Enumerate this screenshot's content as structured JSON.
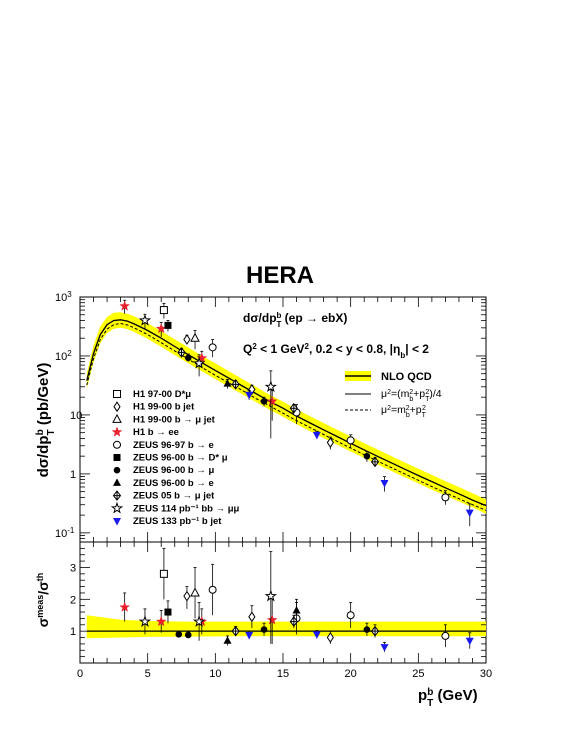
{
  "title": "HERA",
  "chart_data": [
    {
      "type": "scatter",
      "xlabel_main": "p",
      "xlabel_sup": "b",
      "xlabel_sub": "T",
      "xlabel_unit": " (GeV)",
      "ylabel": "dσ/dp_T^b (pb/GeV)",
      "x_range": [
        0,
        30
      ],
      "y_range": [
        0.07,
        1000
      ],
      "y_scale": "log",
      "x_ticks": [
        "0",
        "5",
        "10",
        "15",
        "20",
        "25",
        "30"
      ],
      "y_ticks": [
        {
          "value": 0.1,
          "base": "10",
          "exp": "-1"
        },
        {
          "value": 1,
          "base": "1",
          "exp": ""
        },
        {
          "value": 10,
          "base": "10",
          "exp": ""
        },
        {
          "value": 100,
          "base": "10",
          "exp": "2"
        },
        {
          "value": 1000,
          "base": "10",
          "exp": "3"
        }
      ],
      "annotations": {
        "process": "dσ/dp_T^b (ep → ebX)",
        "cuts": "Q^2 < 1 GeV^2, 0.2 < y < 0.8, |η_b| < 2"
      },
      "theory": {
        "band_label": "NLO QCD",
        "solid_label": "μ^2=(m_b^2+p_T^2)/4",
        "dashed_label": "μ^2=m_b^2+p_T^2",
        "band_color": "#ffff00",
        "x": [
          0.5,
          1,
          1.5,
          2,
          2.5,
          3,
          3.5,
          4,
          5,
          6,
          7,
          8,
          9,
          10,
          11,
          12,
          13,
          14,
          15,
          16,
          17,
          18,
          19,
          20,
          21,
          22,
          23,
          24,
          25,
          26,
          27,
          28,
          29,
          30
        ],
        "solid": [
          38,
          110,
          230,
          340,
          400,
          410,
          390,
          350,
          270,
          200,
          145,
          105,
          77,
          57,
          42,
          31,
          23,
          17,
          13,
          9.6,
          7.3,
          5.6,
          4.3,
          3.3,
          2.55,
          1.98,
          1.54,
          1.2,
          0.94,
          0.74,
          0.58,
          0.46,
          0.36,
          0.29
        ],
        "dashed": [
          32,
          90,
          190,
          285,
          340,
          355,
          335,
          300,
          230,
          168,
          122,
          88,
          64,
          47,
          35,
          26,
          19,
          14.3,
          10.7,
          8.0,
          6.1,
          4.65,
          3.57,
          2.74,
          2.12,
          1.64,
          1.28,
          1.0,
          0.78,
          0.61,
          0.48,
          0.38,
          0.3,
          0.24
        ],
        "band_high": [
          50,
          150,
          320,
          460,
          540,
          550,
          520,
          470,
          360,
          265,
          192,
          139,
          101,
          75,
          55,
          40.5,
          30,
          22,
          16.8,
          12.5,
          9.5,
          7.3,
          5.6,
          4.3,
          3.32,
          2.58,
          2.0,
          1.56,
          1.22,
          0.96,
          0.75,
          0.6,
          0.47,
          0.37
        ],
        "band_low": [
          28,
          78,
          165,
          245,
          290,
          300,
          285,
          255,
          195,
          143,
          104,
          75,
          55,
          40.5,
          30,
          22.3,
          16.6,
          12.3,
          9.3,
          7.0,
          5.3,
          4.05,
          3.12,
          2.4,
          1.86,
          1.44,
          1.12,
          0.88,
          0.69,
          0.54,
          0.43,
          0.34,
          0.27,
          0.21
        ]
      },
      "series": [
        {
          "name": "H1 97-00 D*μ",
          "marker": "open-square",
          "color": "#000000",
          "points": [
            {
              "x": 6.2,
              "y": 600,
              "ylo": 430,
              "yhi": 780
            }
          ]
        },
        {
          "name": "H1 99-00 b jet",
          "marker": "open-diamond",
          "color": "#000000",
          "points": [
            {
              "x": 7.9,
              "y": 190,
              "ylo": 160,
              "yhi": 225
            },
            {
              "x": 12.7,
              "y": 27,
              "ylo": 22,
              "yhi": 32
            },
            {
              "x": 18.5,
              "y": 3.4,
              "ylo": 2.6,
              "yhi": 4.2
            }
          ]
        },
        {
          "name": "H1 99-00 b → μ jet",
          "marker": "open-triangle",
          "color": "#000000",
          "points": [
            {
              "x": 8.5,
              "y": 200,
              "ylo": 130,
              "yhi": 270
            }
          ]
        },
        {
          "name": "H1 b → ee",
          "marker": "star",
          "color": "#e8212d",
          "points": [
            {
              "x": 3.3,
              "y": 700,
              "ylo": 520,
              "yhi": 880
            },
            {
              "x": 6.0,
              "y": 290,
              "ylo": 210,
              "yhi": 370
            },
            {
              "x": 9.0,
              "y": 92,
              "ylo": 65,
              "yhi": 120
            },
            {
              "x": 14.2,
              "y": 17,
              "ylo": 8,
              "yhi": 26
            }
          ]
        },
        {
          "name": "ZEUS 96-97 b → e",
          "marker": "open-circle",
          "color": "#000000",
          "points": [
            {
              "x": 9.8,
              "y": 140,
              "ylo": 95,
              "yhi": 190
            },
            {
              "x": 16.0,
              "y": 11,
              "ylo": 7,
              "yhi": 15
            },
            {
              "x": 20.0,
              "y": 3.7,
              "ylo": 2.8,
              "yhi": 4.6
            },
            {
              "x": 27.0,
              "y": 0.4,
              "ylo": 0.3,
              "yhi": 0.52
            }
          ]
        },
        {
          "name": "ZEUS 96-00 b → D* μ",
          "marker": "filled-square",
          "color": "#000000",
          "points": [
            {
              "x": 6.5,
              "y": 330,
              "ylo": 260,
              "yhi": 400
            }
          ]
        },
        {
          "name": "ZEUS 96-00 b → μ",
          "marker": "filled-circle",
          "color": "#000000",
          "points": [
            {
              "x": 8.0,
              "y": 93,
              "ylo": 80,
              "yhi": 108
            },
            {
              "x": 13.6,
              "y": 17,
              "ylo": 14,
              "yhi": 20
            },
            {
              "x": 21.2,
              "y": 2.0,
              "ylo": 1.6,
              "yhi": 2.4
            }
          ]
        },
        {
          "name": "ZEUS 96-00 b → e",
          "marker": "filled-triangle",
          "color": "#000000",
          "points": [
            {
              "x": 10.9,
              "y": 34,
              "ylo": 28,
              "yhi": 40
            }
          ]
        },
        {
          "name": "ZEUS 05 b → μ jet",
          "marker": "cross-diamond",
          "color": "#000000",
          "points": [
            {
              "x": 7.5,
              "y": 115,
              "ylo": 95,
              "yhi": 135
            },
            {
              "x": 11.5,
              "y": 33,
              "ylo": 28,
              "yhi": 38
            },
            {
              "x": 15.8,
              "y": 13,
              "ylo": 11,
              "yhi": 15
            },
            {
              "x": 21.8,
              "y": 1.6,
              "ylo": 1.3,
              "yhi": 1.9
            }
          ]
        },
        {
          "name": "ZEUS 114 pb⁻¹ bb → μμ",
          "marker": "open-star",
          "color": "#000000",
          "points": [
            {
              "x": 4.8,
              "y": 400,
              "ylo": 290,
              "yhi": 510
            },
            {
              "x": 8.8,
              "y": 75,
              "ylo": 45,
              "yhi": 105
            },
            {
              "x": 14.1,
              "y": 30,
              "ylo": 4,
              "yhi": 56
            }
          ]
        },
        {
          "name": "ZEUS 133 pb⁻¹ b jet",
          "marker": "down-triangle",
          "color": "#1a1aee",
          "points": [
            {
              "x": 12.5,
              "y": 22,
              "ylo": 18,
              "yhi": 26
            },
            {
              "x": 17.5,
              "y": 4.6,
              "ylo": 3.9,
              "yhi": 5.3
            },
            {
              "x": 22.5,
              "y": 0.7,
              "ylo": 0.5,
              "yhi": 0.9
            },
            {
              "x": 28.8,
              "y": 0.22,
              "ylo": 0.13,
              "yhi": 0.31
            }
          ]
        }
      ]
    },
    {
      "type": "scatter",
      "ylabel": "σ^meas/σ^th",
      "x_range": [
        0,
        30
      ],
      "y_range": [
        0,
        3.8
      ],
      "y_ticks": [
        "1",
        "2",
        "3"
      ],
      "reference_line": 1,
      "band": {
        "x": [
          0.5,
          3,
          5,
          8,
          12,
          20,
          30
        ],
        "low": [
          0.78,
          0.8,
          0.82,
          0.83,
          0.84,
          0.84,
          0.84
        ],
        "high": [
          1.5,
          1.36,
          1.32,
          1.3,
          1.3,
          1.3,
          1.3
        ]
      },
      "series": [
        {
          "name": "H1 97-00 D*μ",
          "marker": "open-square",
          "color": "#000000",
          "points": [
            {
              "x": 6.2,
              "y": 2.8,
              "ylo": 2.0,
              "yhi": 3.6
            }
          ]
        },
        {
          "name": "H1 99-00 b jet",
          "marker": "open-diamond",
          "color": "#000000",
          "points": [
            {
              "x": 7.9,
              "y": 2.1,
              "ylo": 1.7,
              "yhi": 2.4
            },
            {
              "x": 12.7,
              "y": 1.45,
              "ylo": 1.1,
              "yhi": 1.8
            },
            {
              "x": 18.5,
              "y": 0.8,
              "ylo": 0.6,
              "yhi": 1.0
            }
          ]
        },
        {
          "name": "H1 99-00 b → μ jet",
          "marker": "open-triangle",
          "color": "#000000",
          "points": [
            {
              "x": 8.5,
              "y": 2.2,
              "ylo": 1.4,
              "yhi": 3.0
            }
          ]
        },
        {
          "name": "H1 b → ee",
          "marker": "star",
          "color": "#e8212d",
          "points": [
            {
              "x": 3.3,
              "y": 1.75,
              "ylo": 1.3,
              "yhi": 2.2
            },
            {
              "x": 6.0,
              "y": 1.3,
              "ylo": 0.95,
              "yhi": 1.65
            },
            {
              "x": 9.0,
              "y": 1.3,
              "ylo": 0.9,
              "yhi": 1.7
            },
            {
              "x": 14.2,
              "y": 1.35,
              "ylo": 0.6,
              "yhi": 2.1
            }
          ]
        },
        {
          "name": "ZEUS 96-97 b → e",
          "marker": "open-circle",
          "color": "#000000",
          "points": [
            {
              "x": 9.8,
              "y": 2.3,
              "ylo": 1.5,
              "yhi": 3.1
            },
            {
              "x": 16.0,
              "y": 1.4,
              "ylo": 0.9,
              "yhi": 1.9
            },
            {
              "x": 20.0,
              "y": 1.5,
              "ylo": 1.1,
              "yhi": 1.9
            },
            {
              "x": 27.0,
              "y": 0.85,
              "ylo": 0.5,
              "yhi": 1.2
            }
          ]
        },
        {
          "name": "ZEUS 96-00 b → D* μ",
          "marker": "filled-square",
          "color": "#000000",
          "points": [
            {
              "x": 6.5,
              "y": 1.6,
              "ylo": 1.25,
              "yhi": 1.95
            }
          ]
        },
        {
          "name": "ZEUS 96-00 b → μ",
          "marker": "filled-circle",
          "color": "#000000",
          "points": [
            {
              "x": 7.3,
              "y": 0.9,
              "ylo": 0.8,
              "yhi": 1.0
            },
            {
              "x": 8.0,
              "y": 0.88,
              "ylo": 0.78,
              "yhi": 0.98
            },
            {
              "x": 13.6,
              "y": 1.05,
              "ylo": 0.85,
              "yhi": 1.25
            },
            {
              "x": 21.2,
              "y": 1.05,
              "ylo": 0.85,
              "yhi": 1.25
            }
          ]
        },
        {
          "name": "ZEUS 96-00 b → e",
          "marker": "filled-triangle",
          "color": "#000000",
          "points": [
            {
              "x": 10.9,
              "y": 0.7,
              "ylo": 0.55,
              "yhi": 0.85
            },
            {
              "x": 16.0,
              "y": 1.65,
              "ylo": 1.3,
              "yhi": 2.0
            }
          ]
        },
        {
          "name": "ZEUS 05 b → μ jet",
          "marker": "cross-diamond",
          "color": "#000000",
          "points": [
            {
              "x": 11.5,
              "y": 1.0,
              "ylo": 0.85,
              "yhi": 1.15
            },
            {
              "x": 15.8,
              "y": 1.3,
              "ylo": 1.1,
              "yhi": 1.5
            },
            {
              "x": 21.8,
              "y": 1.0,
              "ylo": 0.8,
              "yhi": 1.2
            }
          ]
        },
        {
          "name": "ZEUS 114 pb⁻¹ bb → μμ",
          "marker": "open-star",
          "color": "#000000",
          "points": [
            {
              "x": 4.8,
              "y": 1.3,
              "ylo": 0.9,
              "yhi": 1.7
            },
            {
              "x": 8.8,
              "y": 1.3,
              "ylo": 0.7,
              "yhi": 1.9
            },
            {
              "x": 14.1,
              "y": 2.1,
              "ylo": 0.6,
              "yhi": 3.5
            }
          ]
        },
        {
          "name": "ZEUS 133 pb⁻¹ b jet",
          "marker": "down-triangle",
          "color": "#1a1aee",
          "points": [
            {
              "x": 12.5,
              "y": 0.88,
              "ylo": 0.75,
              "yhi": 1.0
            },
            {
              "x": 17.5,
              "y": 0.9,
              "ylo": 0.78,
              "yhi": 1.02
            },
            {
              "x": 22.5,
              "y": 0.5,
              "ylo": 0.35,
              "yhi": 0.65
            },
            {
              "x": 28.8,
              "y": 0.7,
              "ylo": 0.45,
              "yhi": 0.95
            }
          ]
        }
      ]
    }
  ]
}
